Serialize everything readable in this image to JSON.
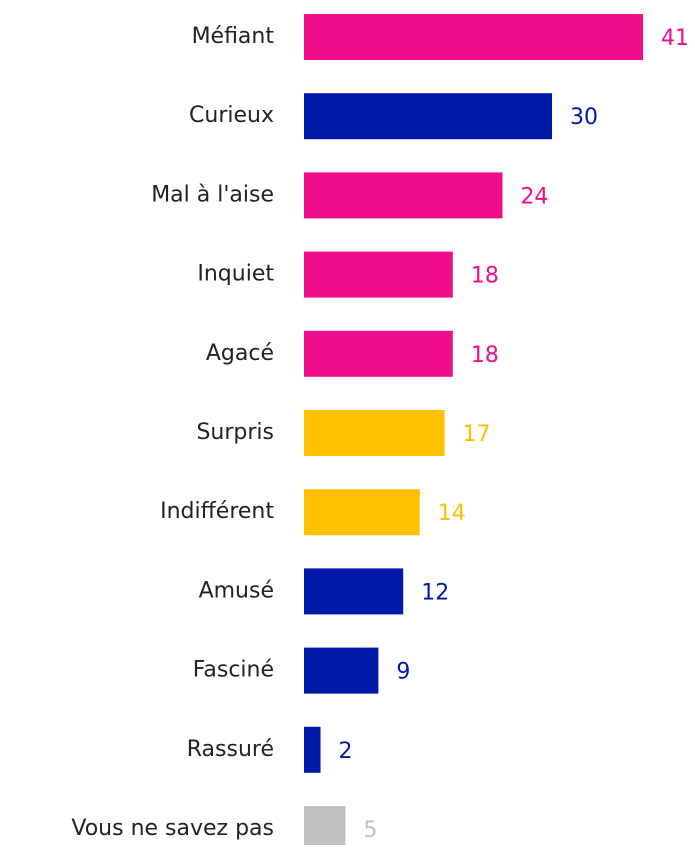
{
  "chart_data": {
    "type": "bar",
    "orientation": "horizontal",
    "categories": [
      "Méfiant",
      "Curieux",
      "Mal à l'aise",
      "Inquiet",
      "Agacé",
      "Surpris",
      "Indifférent",
      "Amusé",
      "Fasciné",
      "Rassuré",
      "Vous ne savez pas"
    ],
    "values": [
      41,
      30,
      24,
      18,
      18,
      17,
      14,
      12,
      9,
      2,
      5
    ],
    "colors": [
      "#f00d8c",
      "#0019a8",
      "#f00d8c",
      "#f00d8c",
      "#f00d8c",
      "#ffc000",
      "#ffc000",
      "#0019a8",
      "#0019a8",
      "#0019a8",
      "#c0c0c0"
    ]
  }
}
